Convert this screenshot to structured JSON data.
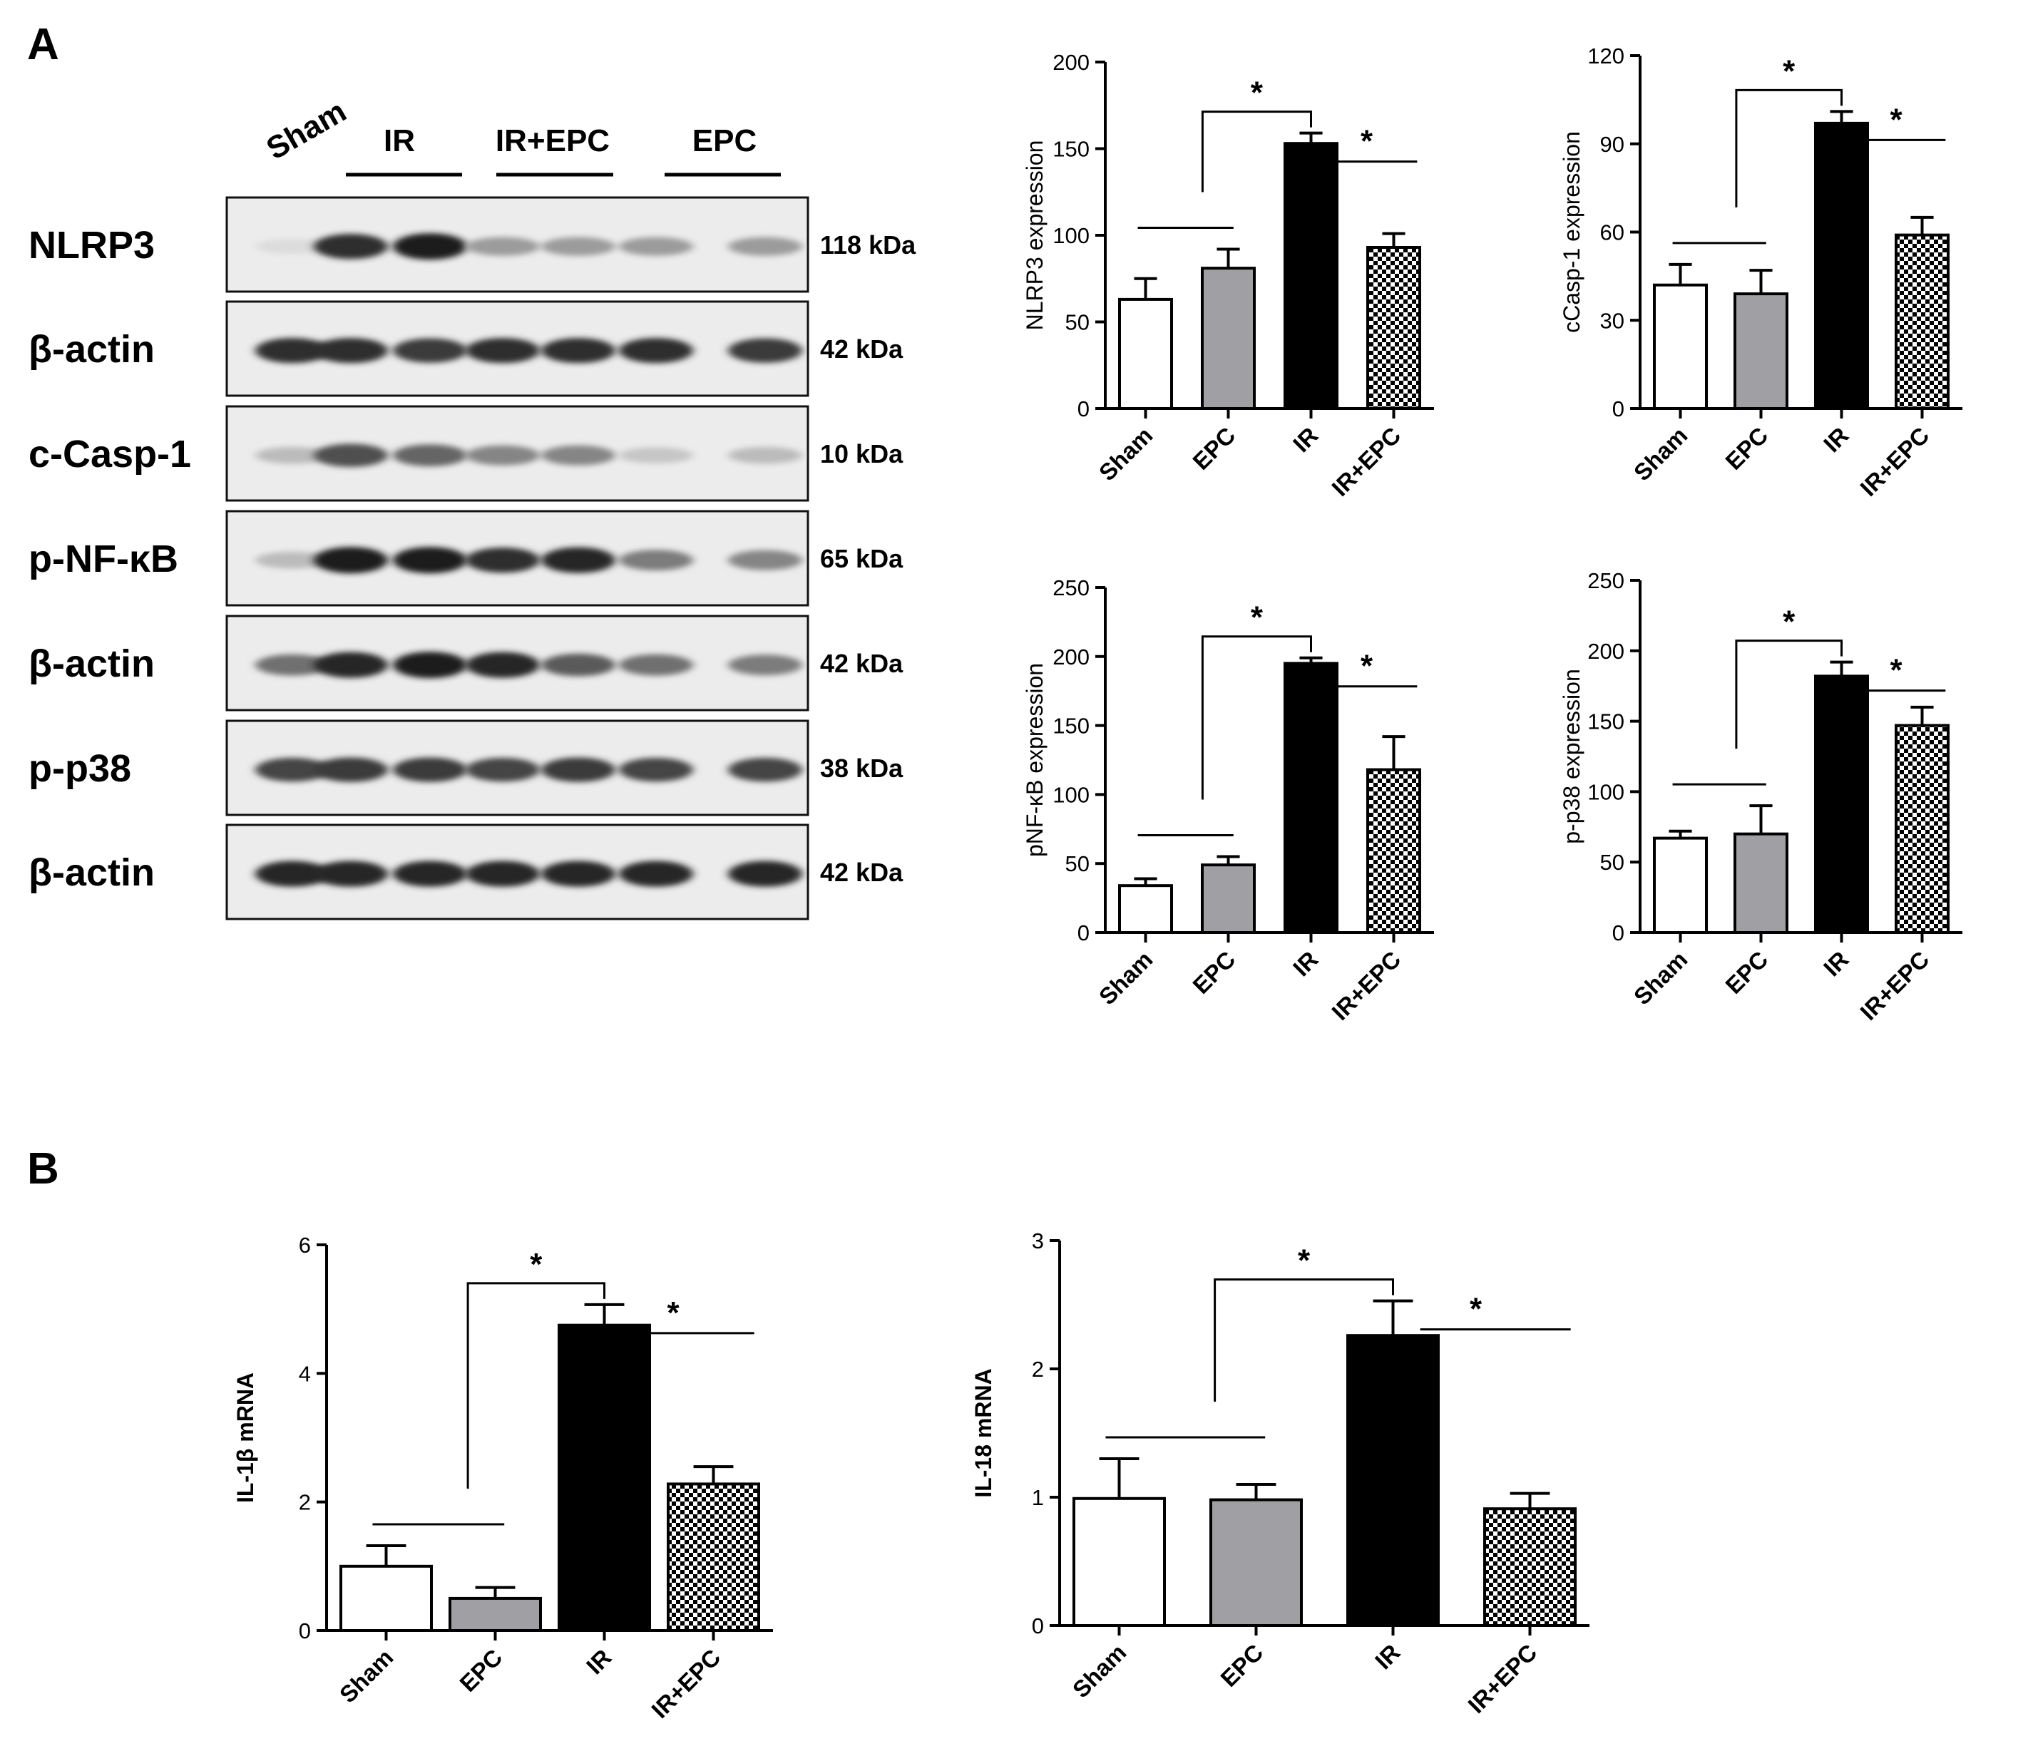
{
  "panel_a": {
    "letter": "A",
    "lanes": [
      "Sham",
      "IR",
      "IR+EPC",
      "EPC"
    ],
    "blots": [
      {
        "label": "NLRP3",
        "kda": "118 kDa"
      },
      {
        "label": "β-actin",
        "kda": "42 kDa"
      },
      {
        "label": "c-Casp-1",
        "kda": "10 kDa"
      },
      {
        "label": "p-NF-κB",
        "kda": "65 kDa"
      },
      {
        "label": "β-actin",
        "kda": "42 kDa"
      },
      {
        "label": "p-p38",
        "kda": "38 kDa"
      },
      {
        "label": "β-actin",
        "kda": "42 kDa"
      }
    ],
    "band_intensity": [
      [
        0.05,
        0.85,
        0.95,
        0.35,
        0.35,
        0.35,
        0.35
      ],
      [
        0.85,
        0.85,
        0.8,
        0.85,
        0.85,
        0.85,
        0.8
      ],
      [
        0.2,
        0.7,
        0.6,
        0.45,
        0.45,
        0.15,
        0.2
      ],
      [
        0.2,
        0.95,
        0.95,
        0.85,
        0.9,
        0.5,
        0.45
      ],
      [
        0.55,
        0.9,
        0.95,
        0.9,
        0.65,
        0.55,
        0.5
      ],
      [
        0.75,
        0.8,
        0.8,
        0.75,
        0.8,
        0.75,
        0.75
      ],
      [
        0.9,
        0.9,
        0.9,
        0.9,
        0.9,
        0.9,
        0.9
      ]
    ]
  },
  "panel_b": {
    "letter": "B"
  },
  "fill_colors": {
    "Sham": "#ffffff",
    "EPC": "#a0a0a4",
    "IR": "#000000",
    "IR+EPC": "checkered"
  },
  "chart_data": [
    {
      "type": "bar",
      "ylabel": "NLRP3 expression",
      "categories": [
        "Sham",
        "EPC",
        "IR",
        "IR+EPC"
      ],
      "values": [
        63,
        81,
        153,
        93
      ],
      "errors": [
        12,
        11,
        6,
        8
      ],
      "ylim": [
        0,
        200
      ],
      "yticks": [
        0,
        50,
        100,
        150,
        200
      ],
      "significance": [
        "*",
        "*"
      ]
    },
    {
      "type": "bar",
      "ylabel": "cCasp-1 expression",
      "categories": [
        "Sham",
        "EPC",
        "IR",
        "IR+EPC"
      ],
      "values": [
        42,
        39,
        97,
        59
      ],
      "errors": [
        7,
        8,
        4,
        6
      ],
      "ylim": [
        0,
        120
      ],
      "yticks": [
        0,
        30,
        60,
        90,
        120
      ],
      "significance": [
        "*",
        "*"
      ]
    },
    {
      "type": "bar",
      "ylabel": "pNF-κB expression",
      "categories": [
        "Sham",
        "EPC",
        "IR",
        "IR+EPC"
      ],
      "values": [
        34,
        49,
        195,
        118
      ],
      "errors": [
        5,
        6,
        4,
        24
      ],
      "ylim": [
        0,
        250
      ],
      "yticks": [
        0,
        50,
        100,
        150,
        200,
        250
      ],
      "significance": [
        "*",
        "*"
      ]
    },
    {
      "type": "bar",
      "ylabel": "p-p38 expression",
      "categories": [
        "Sham",
        "EPC",
        "IR",
        "IR+EPC"
      ],
      "values": [
        67,
        70,
        182,
        147
      ],
      "errors": [
        5,
        20,
        10,
        13
      ],
      "ylim": [
        0,
        250
      ],
      "yticks": [
        0,
        50,
        100,
        150,
        200,
        250
      ],
      "significance": [
        "*",
        "*"
      ]
    },
    {
      "type": "bar",
      "ylabel": "IL-1β mRNA",
      "categories": [
        "Sham",
        "EPC",
        "IR",
        "IR+EPC"
      ],
      "values": [
        1.0,
        0.5,
        4.75,
        2.28
      ],
      "errors": [
        0.32,
        0.17,
        0.32,
        0.27
      ],
      "ylim": [
        0,
        6
      ],
      "yticks": [
        0,
        2,
        4,
        6
      ],
      "significance": [
        "*",
        "*"
      ]
    },
    {
      "type": "bar",
      "ylabel": "IL-18 mRNA",
      "categories": [
        "Sham",
        "EPC",
        "IR",
        "IR+EPC"
      ],
      "values": [
        0.99,
        0.98,
        2.26,
        0.91
      ],
      "errors": [
        0.31,
        0.12,
        0.27,
        0.12
      ],
      "ylim": [
        0,
        3
      ],
      "yticks": [
        0,
        1,
        2,
        3
      ],
      "significance": [
        "*",
        "*"
      ]
    }
  ]
}
